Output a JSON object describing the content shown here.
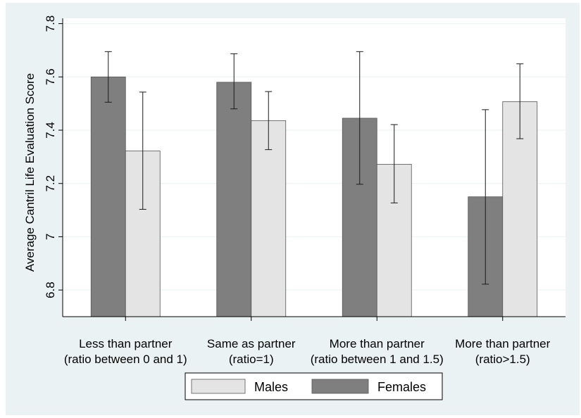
{
  "chart_data": {
    "type": "bar",
    "title": "",
    "xlabel": "",
    "ylabel": "Average Cantril Life Evaluation Score",
    "ylim": [
      6.7,
      7.82
    ],
    "yticks": [
      6.8,
      7,
      7.2,
      7.4,
      7.6,
      7.8
    ],
    "ytick_labels": [
      "6.8",
      "7",
      "7.2",
      "7.4",
      "7.6",
      "7.8"
    ],
    "grid": true,
    "legend_position": "bottom",
    "categories": [
      [
        "Less than partner",
        "(ratio between 0 and 1)"
      ],
      [
        "Same as partner",
        "(ratio=1)"
      ],
      [
        "More than partner",
        "(ratio between 1 and 1.5)"
      ],
      [
        "More than partner",
        "(ratio>1.5)"
      ]
    ],
    "series": [
      {
        "name": "Females",
        "color": "#7f7f7f",
        "values": [
          7.6,
          7.58,
          7.445,
          7.15
        ],
        "ci_low": [
          7.505,
          7.48,
          7.197,
          6.822
        ],
        "ci_high": [
          7.695,
          7.687,
          7.695,
          7.477
        ]
      },
      {
        "name": "Males",
        "color": "#e4e4e4",
        "values": [
          7.322,
          7.436,
          7.272,
          7.507
        ],
        "ci_low": [
          7.103,
          7.327,
          7.127,
          7.368
        ],
        "ci_high": [
          7.543,
          7.545,
          7.421,
          7.649
        ]
      }
    ],
    "legend": [
      "Males",
      "Females"
    ]
  },
  "colors": {
    "outer_background": "#eaf2f3",
    "plot_background": "#ffffff",
    "gridline": "#eaf2f3",
    "error_bar": "#1a1a1a",
    "bar_edge": "#555555"
  }
}
